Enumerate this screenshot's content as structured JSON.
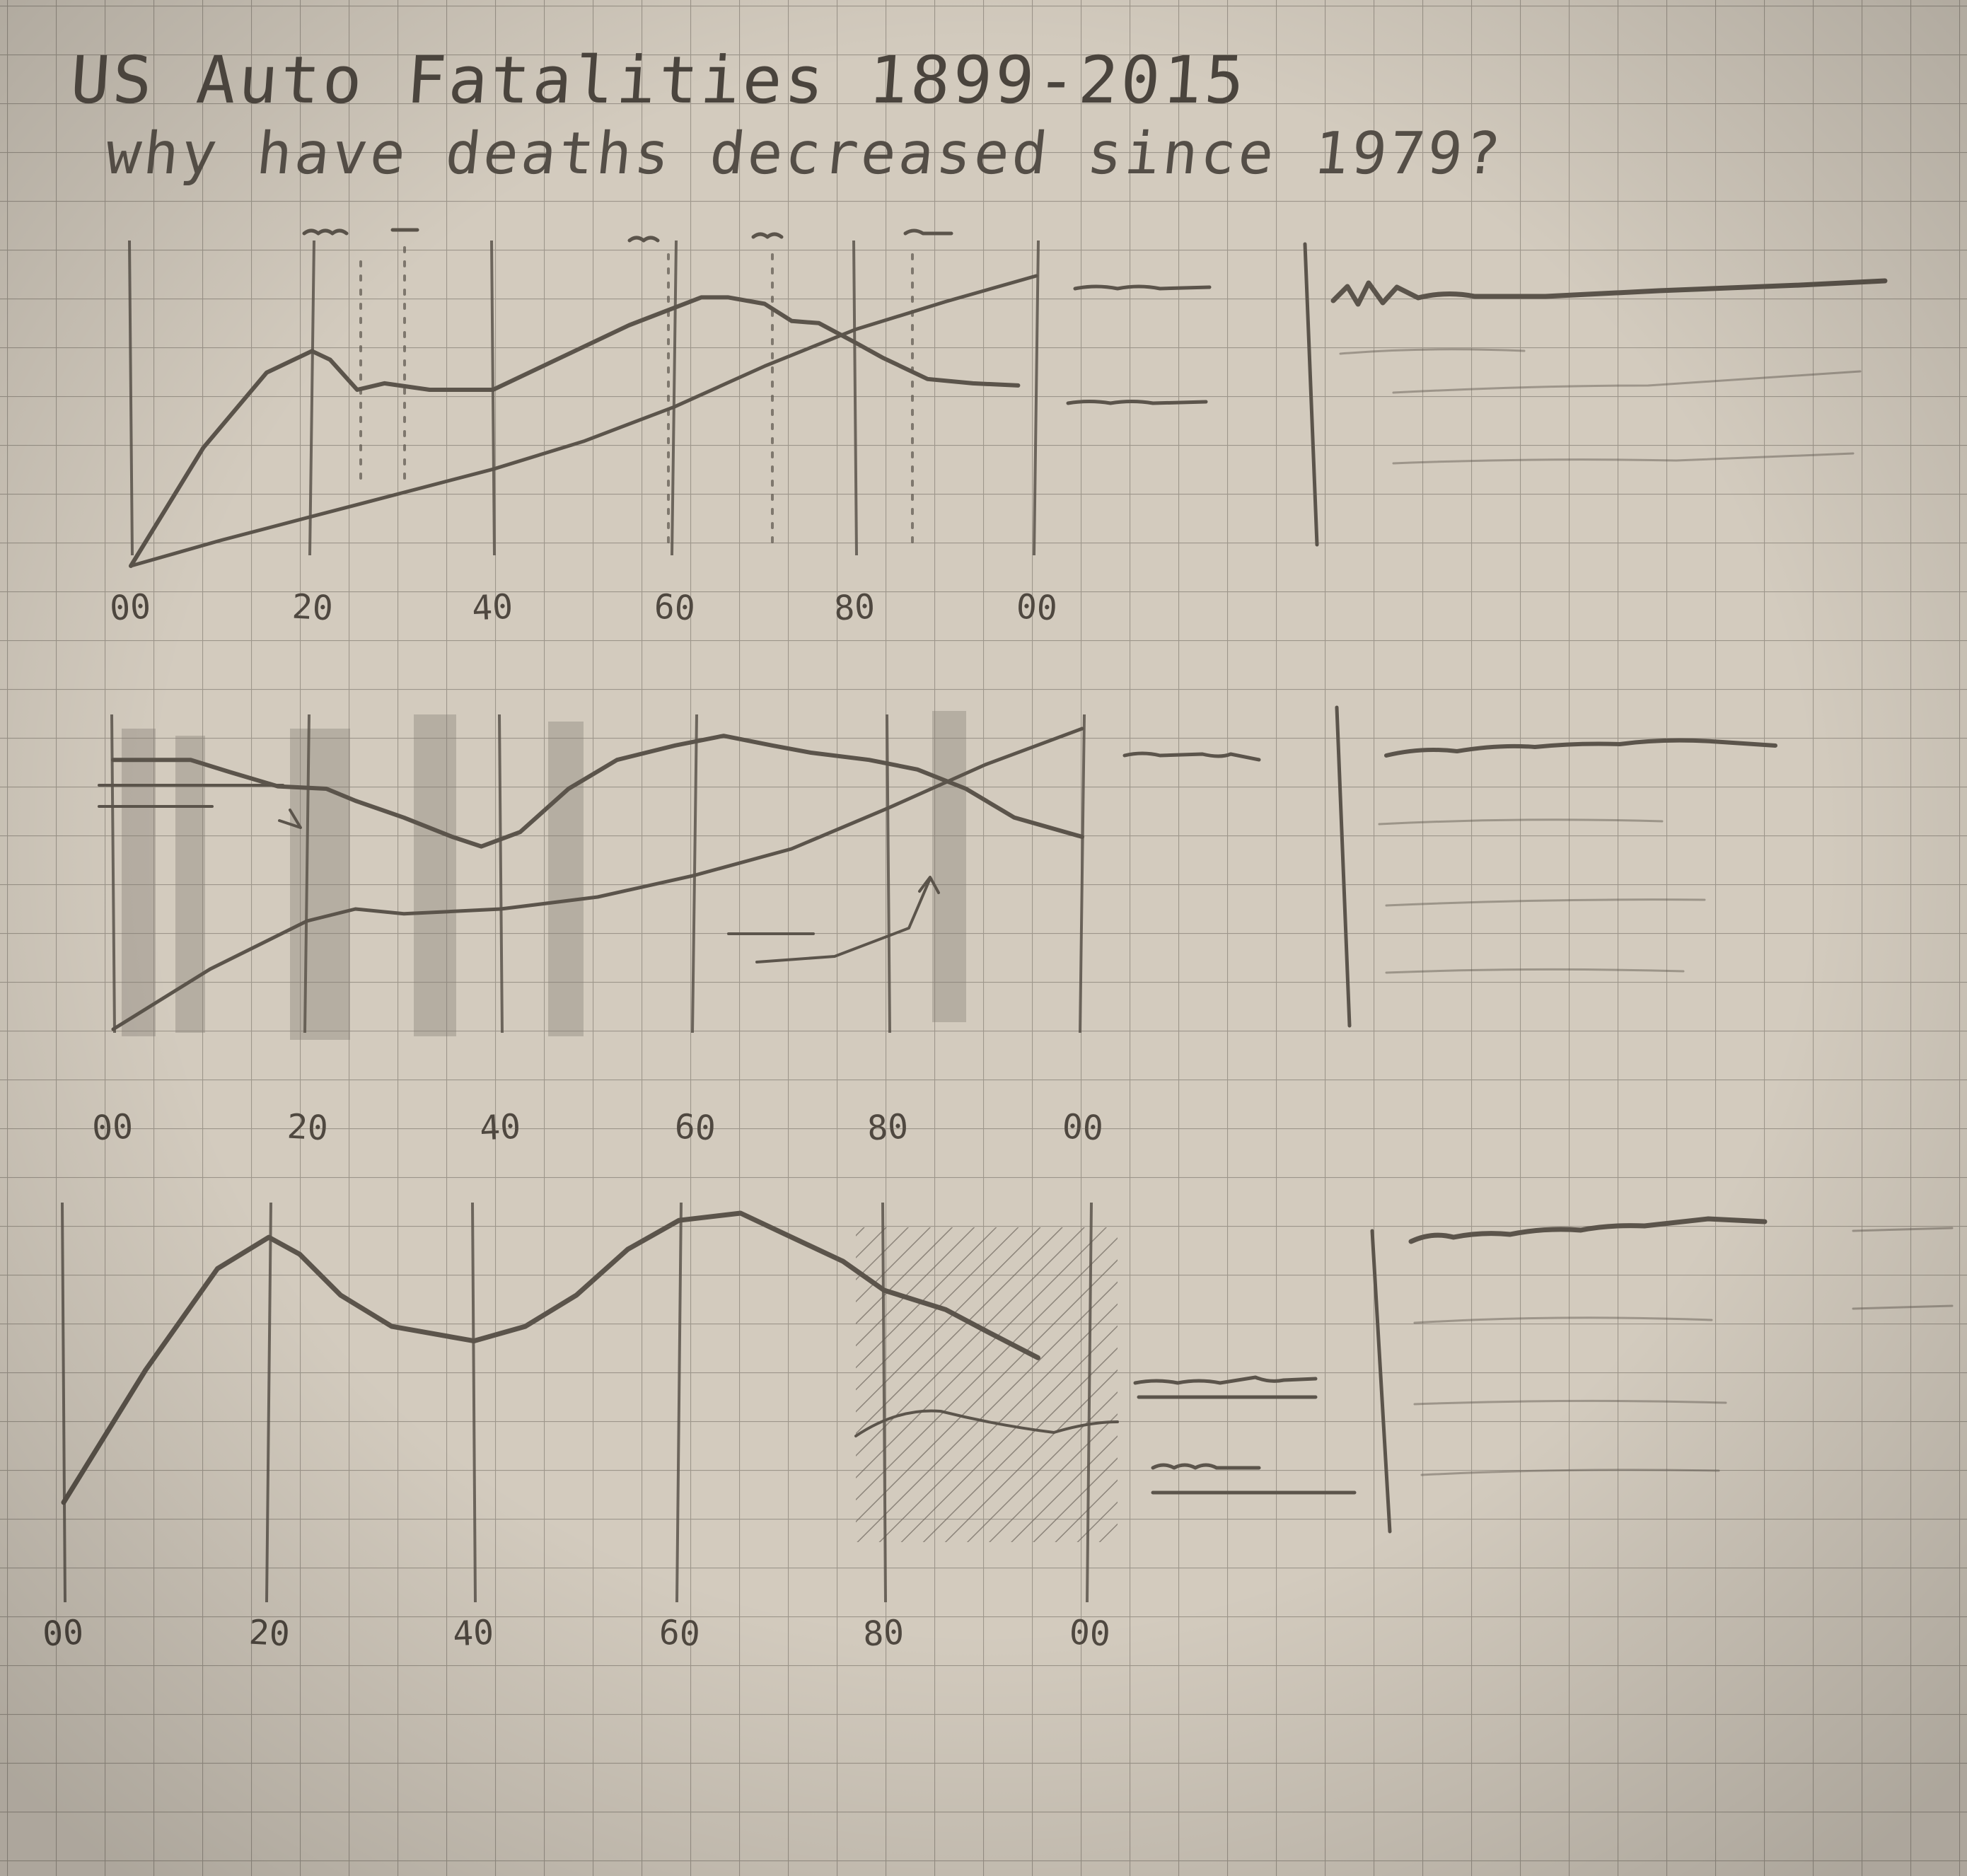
{
  "title": "US Auto Fatalities 1899-2015",
  "subtitle": "why have deaths decreased since 1979?",
  "colors": {
    "paper": "#cfc7ba",
    "grid": "#9d968b",
    "pencil": "#5b544b",
    "shading": "#8d867c"
  },
  "chart_data": [
    {
      "type": "line",
      "xlim": [
        0,
        100
      ],
      "x_tick_labels": [
        "00",
        "20",
        "40",
        "60",
        "80",
        "00"
      ],
      "series": [
        {
          "x": [
            0,
            8,
            15,
            20,
            22,
            25,
            28,
            33,
            40,
            48,
            55,
            63,
            66,
            70,
            73,
            76,
            80,
            83,
            88,
            93,
            98
          ],
          "y": [
            0,
            55,
            90,
            100,
            96,
            82,
            85,
            82,
            82,
            98,
            112,
            125,
            125,
            122,
            114,
            113,
            104,
            97,
            87,
            85,
            84
          ]
        },
        {
          "x": [
            0,
            10,
            20,
            30,
            40,
            50,
            60,
            70,
            80,
            90,
            100
          ],
          "y": [
            0,
            12,
            23,
            34,
            45,
            58,
            74,
            93,
            110,
            123,
            135
          ]
        }
      ]
    },
    {
      "type": "line",
      "xlim": [
        0,
        100
      ],
      "x_tick_labels": [
        "00",
        "20",
        "40",
        "60",
        "80",
        "00"
      ],
      "series": [
        {
          "x": [
            0,
            8,
            12,
            17,
            22,
            25,
            30,
            35,
            38,
            42,
            47,
            52,
            58,
            63,
            68,
            72,
            78,
            83,
            88,
            93,
            100
          ],
          "y": [
            112,
            112,
            107,
            101,
            100,
            95,
            88,
            80,
            76,
            82,
            100,
            112,
            118,
            122,
            118,
            115,
            112,
            108,
            100,
            88,
            80
          ]
        },
        {
          "x": [
            0,
            10,
            20,
            25,
            30,
            40,
            50,
            60,
            70,
            80,
            90,
            100
          ],
          "y": [
            0,
            25,
            45,
            50,
            48,
            50,
            55,
            64,
            75,
            92,
            110,
            125
          ]
        }
      ]
    },
    {
      "type": "line",
      "xlim": [
        0,
        100
      ],
      "x_tick_labels": [
        "00",
        "20",
        "40",
        "60",
        "80",
        "00"
      ],
      "series": [
        {
          "x": [
            0,
            8,
            15,
            20,
            23,
            27,
            32,
            40,
            45,
            50,
            55,
            60,
            66,
            70,
            76,
            80,
            86,
            90,
            95
          ],
          "y": [
            15,
            70,
            112,
            125,
            118,
            101,
            88,
            82,
            88,
            101,
            120,
            132,
            135,
            127,
            115,
            103,
            95,
            86,
            75
          ]
        }
      ]
    }
  ]
}
